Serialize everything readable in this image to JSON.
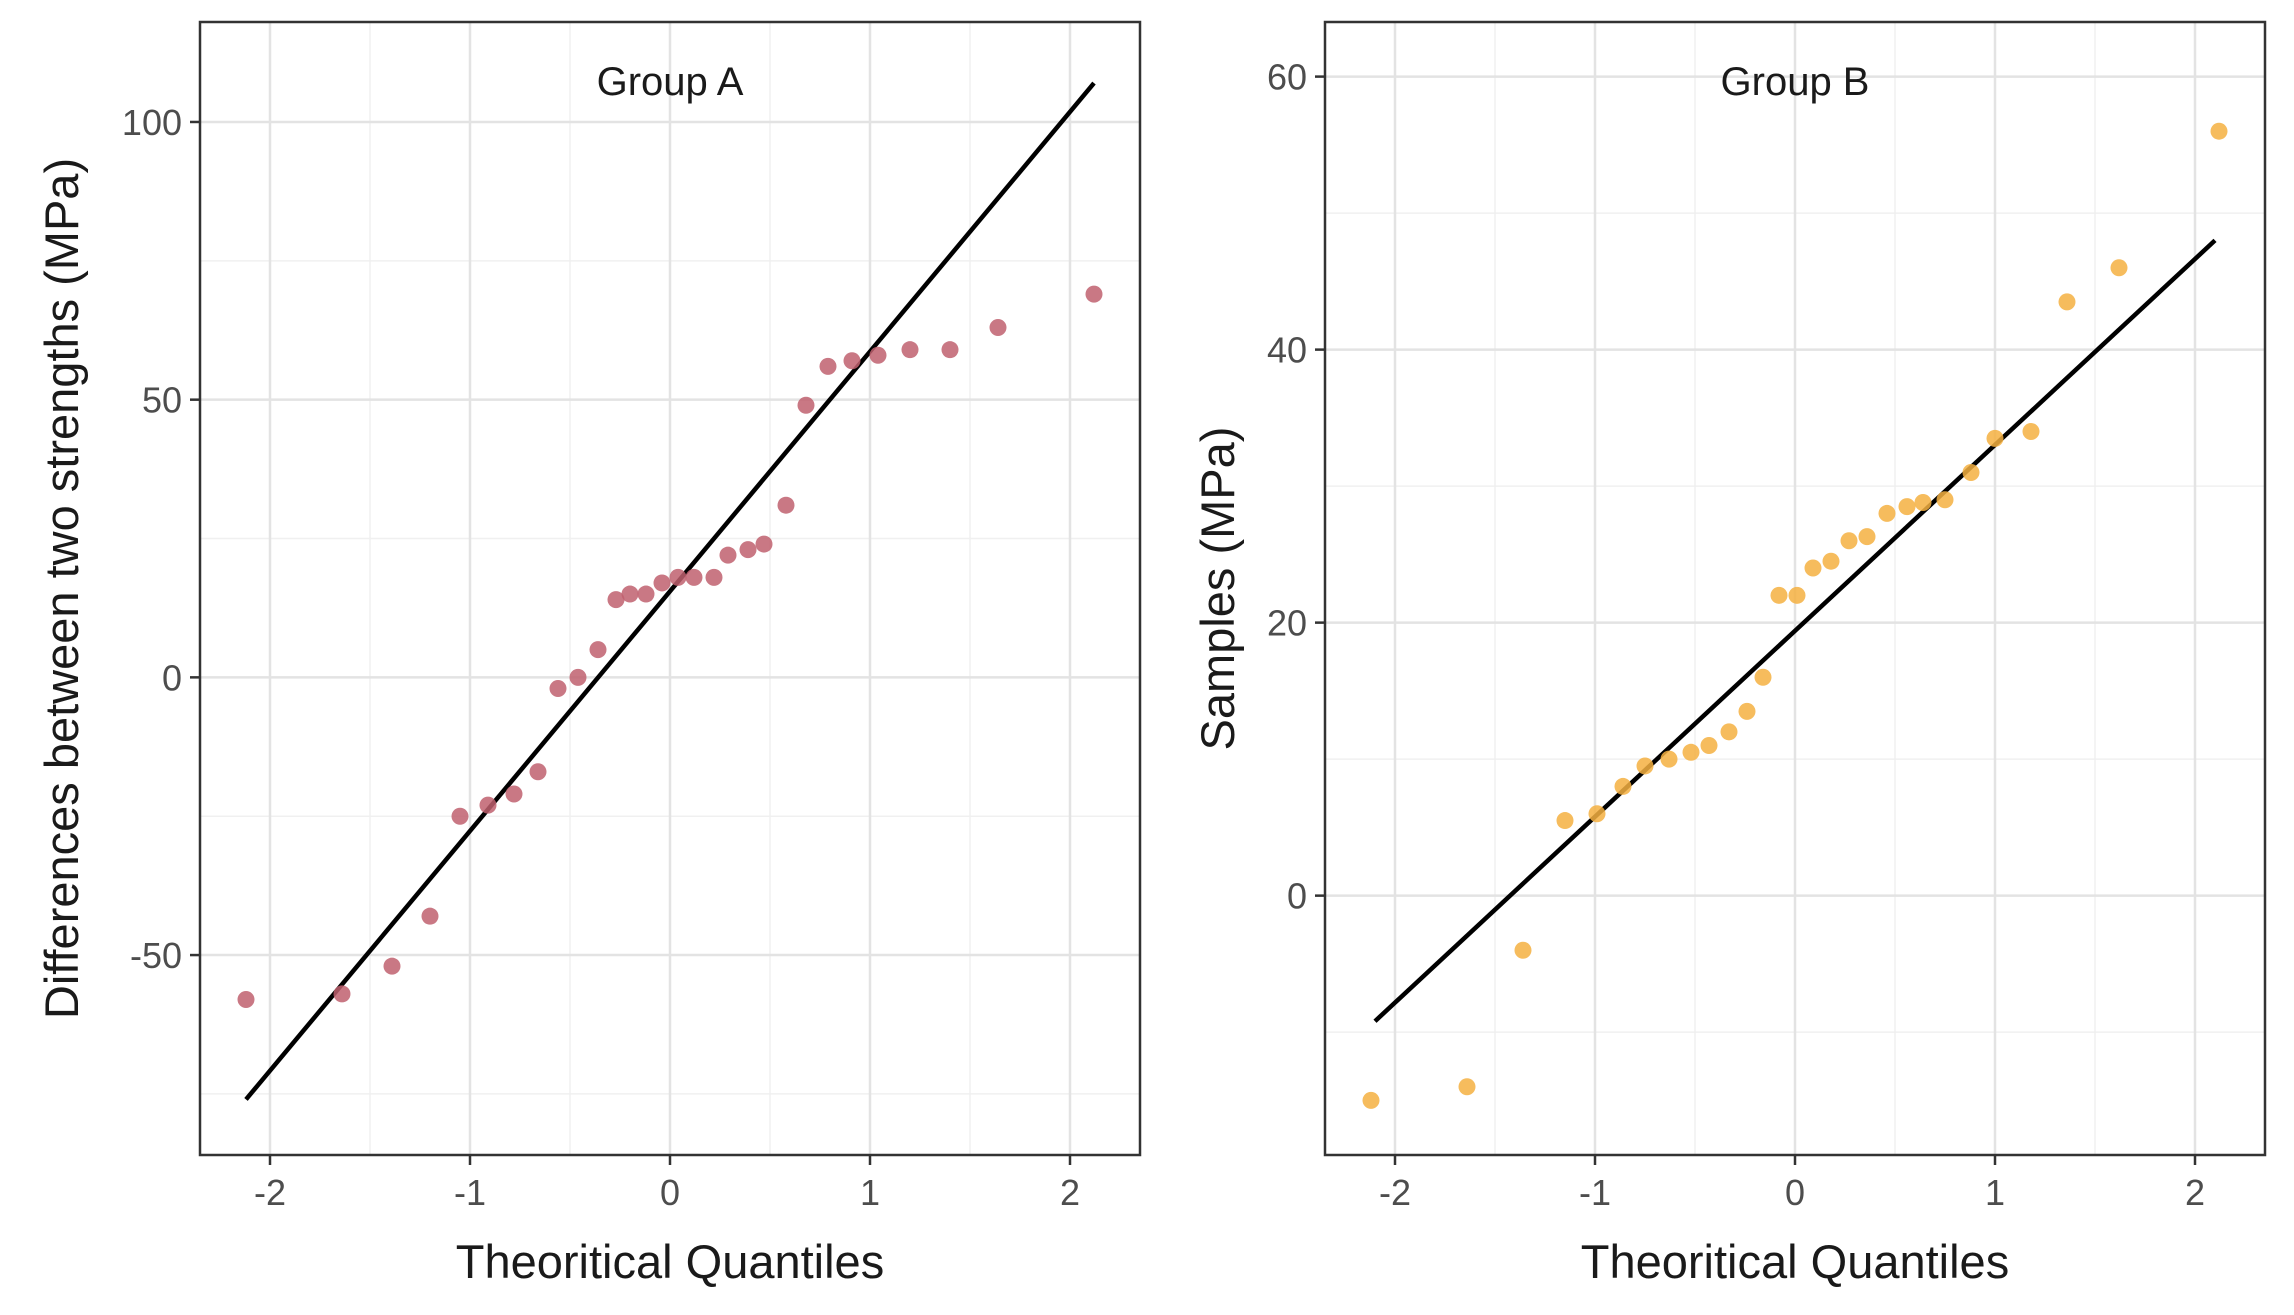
{
  "chart_data": [
    {
      "type": "scatter",
      "title": "Group A",
      "xlabel": "Theoritical Quantiles",
      "ylabel": "Differences between two strengths (MPa)",
      "xlim": [
        -2.35,
        2.35
      ],
      "ylim": [
        -86,
        118
      ],
      "xticks": [
        -2,
        -1,
        0,
        1,
        2
      ],
      "xtick_labels": [
        "-2",
        "-1",
        "0",
        "1",
        "2"
      ],
      "yticks": [
        -50,
        0,
        50,
        100
      ],
      "ytick_labels": [
        "-50",
        "0",
        "50",
        "100"
      ],
      "grid": true,
      "point_color": "#c0606f",
      "line_color": "#000000",
      "points": {
        "x": [
          -2.12,
          -1.64,
          -1.39,
          -1.2,
          -1.05,
          -0.91,
          -0.78,
          -0.66,
          -0.56,
          -0.46,
          -0.36,
          -0.27,
          -0.2,
          -0.12,
          -0.04,
          0.04,
          0.12,
          0.22,
          0.29,
          0.39,
          0.47,
          0.58,
          0.68,
          0.79,
          0.91,
          1.04,
          1.2,
          1.4,
          1.64,
          2.12
        ],
        "y": [
          -58,
          -57,
          -52,
          -43,
          -25,
          -23,
          -21,
          -17,
          -2,
          0,
          5,
          14,
          15,
          15,
          17,
          18,
          18,
          18,
          22,
          23,
          24,
          31,
          49,
          56,
          57,
          58,
          59,
          59,
          63,
          69
        ]
      },
      "reference_line": {
        "x": [
          -2.12,
          2.12
        ],
        "y": [
          -76,
          107
        ]
      }
    },
    {
      "type": "scatter",
      "title": "Group B",
      "xlabel": "Theoritical Quantiles",
      "ylabel": "Samples (MPa)",
      "xlim": [
        -2.35,
        2.35
      ],
      "ylim": [
        -19,
        64
      ],
      "xticks": [
        -2,
        -1,
        0,
        1,
        2
      ],
      "xtick_labels": [
        "-2",
        "-1",
        "0",
        "1",
        "2"
      ],
      "yticks": [
        0,
        20,
        40,
        60
      ],
      "ytick_labels": [
        "0",
        "20",
        "40",
        "60"
      ],
      "grid": true,
      "point_color": "#f5b041",
      "line_color": "#000000",
      "points": {
        "x": [
          -2.12,
          -1.64,
          -1.36,
          -1.15,
          -0.99,
          -0.86,
          -0.75,
          -0.63,
          -0.52,
          -0.43,
          -0.33,
          -0.24,
          -0.16,
          -0.08,
          0.01,
          0.09,
          0.18,
          0.27,
          0.36,
          0.46,
          0.56,
          0.64,
          0.75,
          0.88,
          1.0,
          1.18,
          1.36,
          1.62,
          2.12
        ],
        "y": [
          -15,
          -14,
          -4,
          5.5,
          6,
          8,
          9.5,
          10,
          10.5,
          11,
          12,
          13.5,
          16,
          22,
          22,
          24,
          24.5,
          26,
          26.3,
          28,
          28.5,
          28.8,
          29,
          31,
          33.5,
          34,
          43.5,
          46,
          56
        ]
      },
      "reference_line": {
        "x": [
          -2.1,
          2.1
        ],
        "y": [
          -9.2,
          48
        ]
      }
    }
  ]
}
